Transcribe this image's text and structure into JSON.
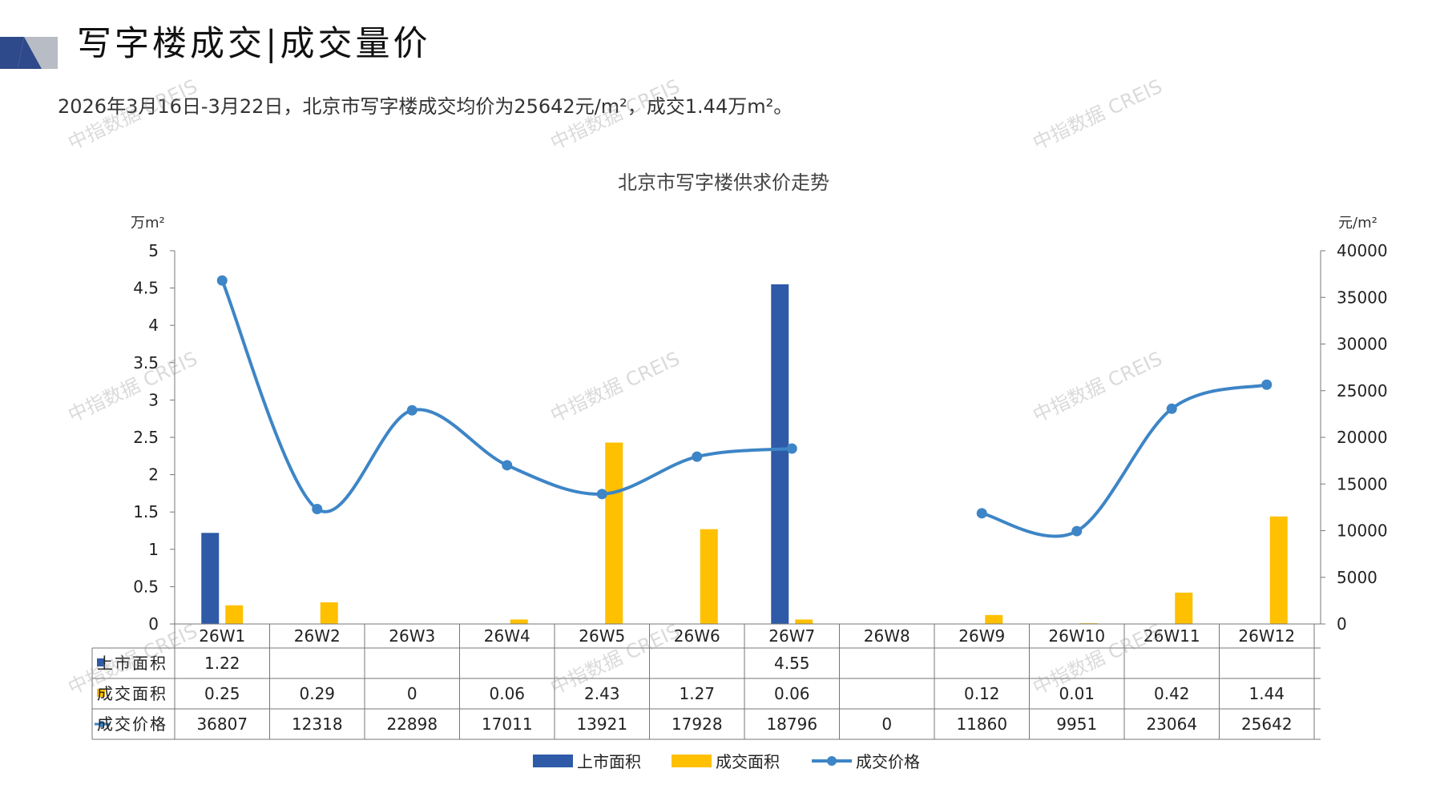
{
  "header": {
    "title": "写字楼成交|成交量价",
    "subtitle": "2026年3月16日-3月22日，北京市写字楼成交均价为25642元/m²，成交1.44万m²。"
  },
  "watermark_text": "中指数据 CREIS",
  "colors": {
    "listed": "#2E5AA8",
    "traded": "#FFC000",
    "price": "#3D85C6",
    "logo_dark": "#2E4A8B",
    "logo_gray": "#B8BCC4"
  },
  "chart_data": {
    "type": "bar",
    "title": "北京市写字楼供求价走势",
    "left_unit": "万m²",
    "right_unit": "元/m²",
    "categories": [
      "26W1",
      "26W2",
      "26W3",
      "26W4",
      "26W5",
      "26W6",
      "26W7",
      "26W8",
      "26W9",
      "26W10",
      "26W11",
      "26W12"
    ],
    "ylim_left": [
      0,
      5
    ],
    "ylim_right": [
      0,
      40000
    ],
    "yticks_left": [
      "0",
      "0.5",
      "1",
      "1.5",
      "2",
      "2.5",
      "3",
      "3.5",
      "4",
      "4.5",
      "5"
    ],
    "yticks_right": [
      "0",
      "5000",
      "10000",
      "15000",
      "20000",
      "25000",
      "30000",
      "35000",
      "40000"
    ],
    "series": [
      {
        "name": "上市面积",
        "kind": "bar",
        "axis": "left",
        "color": "#2E5AA8",
        "values": [
          1.22,
          null,
          null,
          null,
          null,
          null,
          4.55,
          null,
          null,
          null,
          null,
          null
        ],
        "labels": [
          "1.22",
          "",
          "",
          "",
          "",
          "",
          "4.55",
          "",
          "",
          "",
          "",
          ""
        ]
      },
      {
        "name": "成交面积",
        "kind": "bar",
        "axis": "left",
        "color": "#FFC000",
        "values": [
          0.25,
          0.29,
          0,
          0.06,
          2.43,
          1.27,
          0.06,
          null,
          0.12,
          0.01,
          0.42,
          1.44
        ],
        "labels": [
          "0.25",
          "0.29",
          "0",
          "0.06",
          "2.43",
          "1.27",
          "0.06",
          "",
          "0.12",
          "0.01",
          "0.42",
          "1.44"
        ]
      },
      {
        "name": "成交价格",
        "kind": "line",
        "axis": "right",
        "color": "#3D85C6",
        "values": [
          36807,
          12318,
          22898,
          17011,
          13921,
          17928,
          18796,
          0,
          11860,
          9951,
          23064,
          25642
        ],
        "labels": [
          "36807",
          "12318",
          "22898",
          "17011",
          "13921",
          "17928",
          "18796",
          "0",
          "11860",
          "9951",
          "23064",
          "25642"
        ],
        "plotted": [
          true,
          true,
          true,
          true,
          true,
          true,
          true,
          false,
          true,
          true,
          true,
          true
        ]
      }
    ],
    "legend_position": "bottom",
    "grid": false
  }
}
